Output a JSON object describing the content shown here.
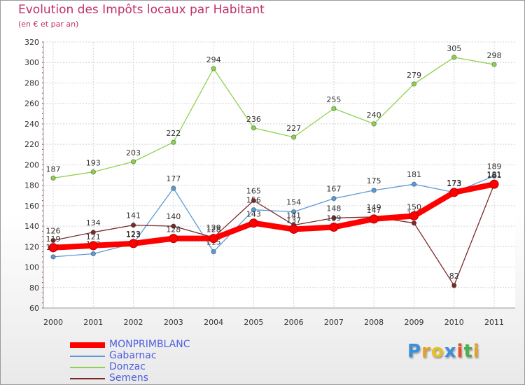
{
  "chart_data": {
    "type": "line",
    "title": "Evolution des Impôts locaux par Habitant",
    "subtitle": "(en € et par an)",
    "x": [
      "2000",
      "2001",
      "2002",
      "2003",
      "2004",
      "2005",
      "2006",
      "2007",
      "2008",
      "2009",
      "2010",
      "2011"
    ],
    "ylim": [
      60,
      320
    ],
    "yticks": [
      60,
      80,
      100,
      120,
      140,
      160,
      180,
      200,
      220,
      240,
      260,
      280,
      300,
      320
    ],
    "grid": true,
    "series": [
      {
        "name": "Donzac",
        "color": "#8fd14f",
        "values": [
          187,
          193,
          203,
          222,
          294,
          236,
          227,
          255,
          240,
          279,
          305,
          298
        ]
      },
      {
        "name": "Gabarnac",
        "color": "#5b9bd5",
        "values": [
          110,
          113,
          123,
          177,
          115,
          156,
          154,
          167,
          175,
          181,
          173,
          189
        ]
      },
      {
        "name": "Semens",
        "color": "#7b2a2a",
        "values": [
          126,
          134,
          141,
          140,
          129,
          165,
          141,
          148,
          149,
          143,
          82,
          181
        ]
      },
      {
        "name": "MONPRIMBLANC",
        "color": "#ff0000",
        "values": [
          119,
          121,
          123,
          128,
          128,
          143,
          137,
          139,
          147,
          150,
          173,
          181
        ]
      }
    ]
  },
  "legend": {
    "items": [
      {
        "label": "MONPRIMBLANC",
        "color": "#ff0000",
        "text_color": "#4f5fe0"
      },
      {
        "label": "Gabarnac",
        "color": "#5b9bd5",
        "text_color": "#4f5fe0"
      },
      {
        "label": "Donzac",
        "color": "#8fd14f",
        "text_color": "#4f5fe0"
      },
      {
        "label": "Semens",
        "color": "#7b2a2a",
        "text_color": "#4f5fe0"
      }
    ]
  },
  "logo": {
    "letters": [
      "P",
      "r",
      "o",
      "x",
      "i",
      "t",
      "i"
    ],
    "colors": [
      "#3a8fd8",
      "#e8a020",
      "#e8c020",
      "#3a8fd8",
      "#e85020",
      "#4cae4c",
      "#e8a020"
    ]
  }
}
